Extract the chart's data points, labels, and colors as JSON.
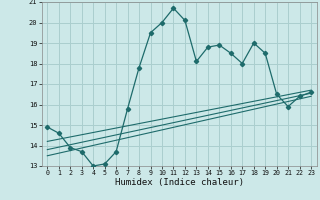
{
  "xlabel": "Humidex (Indice chaleur)",
  "bg_color": "#cce8e8",
  "grid_color": "#aacece",
  "line_color": "#1e6b6b",
  "xlim": [
    -0.5,
    23.5
  ],
  "ylim": [
    13,
    21
  ],
  "xticks": [
    0,
    1,
    2,
    3,
    4,
    5,
    6,
    7,
    8,
    9,
    10,
    11,
    12,
    13,
    14,
    15,
    16,
    17,
    18,
    19,
    20,
    21,
    22,
    23
  ],
  "yticks": [
    13,
    14,
    15,
    16,
    17,
    18,
    19,
    20,
    21
  ],
  "main_x": [
    0,
    1,
    2,
    3,
    4,
    5,
    6,
    7,
    8,
    9,
    10,
    11,
    12,
    13,
    14,
    15,
    16,
    17,
    18,
    19,
    20,
    21,
    22,
    23
  ],
  "main_y": [
    14.9,
    14.6,
    13.9,
    13.7,
    13.0,
    13.1,
    13.7,
    15.8,
    17.8,
    19.5,
    20.0,
    20.7,
    20.1,
    18.1,
    18.8,
    18.9,
    18.5,
    18.0,
    19.0,
    18.5,
    16.5,
    15.9,
    16.4,
    16.6
  ],
  "trend1_x": [
    0,
    23
  ],
  "trend1_y": [
    14.2,
    16.7
  ],
  "trend2_x": [
    0,
    23
  ],
  "trend2_y": [
    13.8,
    16.55
  ],
  "trend3_x": [
    0,
    23
  ],
  "trend3_y": [
    13.5,
    16.4
  ]
}
